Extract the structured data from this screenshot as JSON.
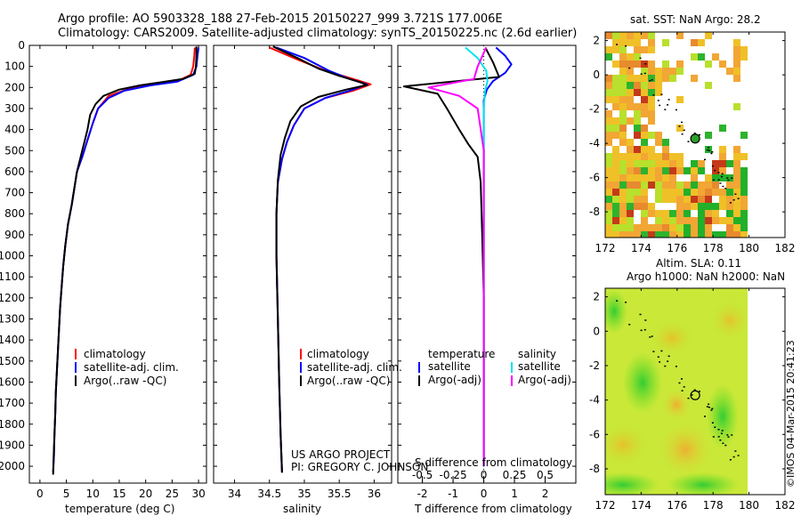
{
  "header": {
    "line1": "Argo profile: AO 5903328_188 27-Feb-2015 20150227_999 3.721S 177.006E",
    "line2": "Climatology: CARS2009. Satellite-adjusted climatology: synTS_20150225.nc (2.6d earlier)"
  },
  "colors": {
    "climatology": "#ff0000",
    "satellite": "#0000ff",
    "argo": "#000000",
    "sal_satellite": "#00e5ee",
    "sal_argo": "#ff00ff"
  },
  "chart_data": [
    {
      "type": "line",
      "name": "temperature-profile",
      "xlabel": "temperature (deg C)",
      "xlim": [
        -2,
        31.5
      ],
      "xticks": [
        0,
        5,
        10,
        15,
        20,
        25,
        30
      ],
      "ylim": [
        0,
        2080
      ],
      "yticks": [
        0,
        100,
        200,
        300,
        400,
        500,
        600,
        700,
        800,
        900,
        1000,
        1100,
        1200,
        1300,
        1400,
        1500,
        1600,
        1700,
        1800,
        1900,
        2000
      ],
      "legend": [
        "climatology",
        "satellite-adj. clim.",
        "Argo(..raw -QC)"
      ],
      "series": [
        {
          "name": "climatology",
          "color": "red",
          "points": [
            [
              29.3,
              10
            ],
            [
              29.2,
              50
            ],
            [
              29.0,
              100
            ],
            [
              28.5,
              140
            ],
            [
              26,
              170
            ],
            [
              22,
              185
            ],
            [
              17,
              205
            ],
            [
              13,
              240
            ],
            [
              11,
              300
            ],
            [
              10,
              370
            ],
            [
              9,
              450
            ],
            [
              8,
              530
            ],
            [
              7,
              600
            ],
            [
              6.5,
              680
            ],
            [
              6,
              760
            ],
            [
              5.3,
              850
            ],
            [
              4.8,
              950
            ],
            [
              4.4,
              1050
            ],
            [
              4.1,
              1150
            ],
            [
              3.8,
              1250
            ],
            [
              3.6,
              1350
            ],
            [
              3.4,
              1450
            ],
            [
              3.2,
              1550
            ],
            [
              3.0,
              1650
            ],
            [
              2.9,
              1750
            ],
            [
              2.75,
              1850
            ],
            [
              2.65,
              1950
            ],
            [
              2.5,
              2030
            ]
          ]
        },
        {
          "name": "satellite-adj. clim.",
          "color": "blue",
          "points": [
            [
              30.0,
              10
            ],
            [
              29.8,
              50
            ],
            [
              29.6,
              100
            ],
            [
              29,
              140
            ],
            [
              26,
              172
            ],
            [
              21,
              190
            ],
            [
              16,
              215
            ],
            [
              13,
              250
            ],
            [
              11,
              300
            ],
            [
              10,
              370
            ],
            [
              9,
              450
            ],
            [
              8,
              530
            ],
            [
              7,
              600
            ],
            [
              6.5,
              680
            ],
            [
              6,
              760
            ],
            [
              5.3,
              850
            ],
            [
              4.8,
              950
            ],
            [
              4.4,
              1050
            ],
            [
              4.1,
              1150
            ],
            [
              3.8,
              1250
            ],
            [
              3.6,
              1350
            ],
            [
              3.4,
              1450
            ],
            [
              3.2,
              1550
            ],
            [
              3.0,
              1650
            ],
            [
              2.9,
              1750
            ],
            [
              2.75,
              1850
            ],
            [
              2.65,
              1950
            ],
            [
              2.5,
              2030
            ]
          ]
        },
        {
          "name": "Argo",
          "color": "black",
          "points": [
            [
              29.6,
              5
            ],
            [
              29.6,
              50
            ],
            [
              29.5,
              100
            ],
            [
              29.3,
              135
            ],
            [
              27,
              160
            ],
            [
              23,
              175
            ],
            [
              19,
              190
            ],
            [
              15,
              210
            ],
            [
              12,
              240
            ],
            [
              10.5,
              280
            ],
            [
              9.5,
              330
            ],
            [
              9,
              400
            ],
            [
              8.5,
              450
            ],
            [
              7.8,
              520
            ],
            [
              7,
              600
            ],
            [
              6.5,
              680
            ],
            [
              6,
              760
            ],
            [
              5.3,
              850
            ],
            [
              4.8,
              950
            ],
            [
              4.4,
              1050
            ],
            [
              4.1,
              1150
            ],
            [
              3.8,
              1250
            ],
            [
              3.6,
              1350
            ],
            [
              3.4,
              1450
            ],
            [
              3.2,
              1550
            ],
            [
              3.0,
              1650
            ],
            [
              2.9,
              1750
            ],
            [
              2.75,
              1850
            ],
            [
              2.6,
              1950
            ],
            [
              2.5,
              2040
            ]
          ]
        }
      ]
    },
    {
      "type": "line",
      "name": "salinity-profile",
      "xlabel": "salinity",
      "xlim": [
        33.7,
        36.25
      ],
      "xticks": [
        34,
        34.5,
        35,
        35.5,
        36
      ],
      "xtick_labels": [
        "34",
        "34.5",
        "35",
        "35.5",
        "36"
      ],
      "ylim": [
        0,
        2080
      ],
      "legend": [
        "climatology",
        "satellite-adj. clim.",
        "Argo(..raw -QC)"
      ],
      "series": [
        {
          "name": "climatology",
          "color": "red",
          "points": [
            [
              34.5,
              10
            ],
            [
              34.85,
              60
            ],
            [
              35.3,
              120
            ],
            [
              35.75,
              165
            ],
            [
              35.95,
              185
            ],
            [
              35.7,
              215
            ],
            [
              35.3,
              250
            ],
            [
              35.0,
              300
            ],
            [
              34.85,
              380
            ],
            [
              34.75,
              460
            ],
            [
              34.68,
              540
            ],
            [
              34.62,
              650
            ],
            [
              34.6,
              800
            ],
            [
              34.6,
              1000
            ],
            [
              34.62,
              1300
            ],
            [
              34.64,
              1600
            ],
            [
              34.66,
              1850
            ],
            [
              34.68,
              2030
            ]
          ]
        },
        {
          "name": "satellite-adj. clim.",
          "color": "blue",
          "points": [
            [
              34.6,
              10
            ],
            [
              35.0,
              60
            ],
            [
              35.35,
              120
            ],
            [
              35.65,
              160
            ],
            [
              35.9,
              185
            ],
            [
              35.65,
              215
            ],
            [
              35.3,
              250
            ],
            [
              35.0,
              300
            ],
            [
              34.85,
              380
            ],
            [
              34.75,
              460
            ],
            [
              34.68,
              540
            ],
            [
              34.62,
              650
            ],
            [
              34.6,
              800
            ],
            [
              34.6,
              1000
            ],
            [
              34.62,
              1300
            ],
            [
              34.64,
              1600
            ],
            [
              34.66,
              1850
            ],
            [
              34.68,
              2030
            ]
          ]
        },
        {
          "name": "Argo",
          "color": "black",
          "points": [
            [
              34.55,
              5
            ],
            [
              34.9,
              60
            ],
            [
              35.2,
              110
            ],
            [
              35.5,
              145
            ],
            [
              35.8,
              175
            ],
            [
              35.9,
              188
            ],
            [
              35.6,
              210
            ],
            [
              35.2,
              245
            ],
            [
              34.95,
              290
            ],
            [
              34.8,
              360
            ],
            [
              34.72,
              440
            ],
            [
              34.66,
              520
            ],
            [
              34.62,
              640
            ],
            [
              34.6,
              800
            ],
            [
              34.6,
              1000
            ],
            [
              34.62,
              1300
            ],
            [
              34.64,
              1600
            ],
            [
              34.66,
              1850
            ],
            [
              34.68,
              2030
            ]
          ]
        }
      ]
    },
    {
      "type": "line",
      "name": "difference-profile",
      "xlabel_bottom": "T difference from climatology",
      "xlabel_top": "S difference from climatology",
      "xlim_T": [
        -2.8,
        3.0
      ],
      "xticks_T": [
        -2,
        -1,
        0,
        1,
        2
      ],
      "xlim_S": [
        -0.7,
        0.75
      ],
      "xticks_S": [
        -0.5,
        -0.25,
        0,
        0.25,
        0.5
      ],
      "xtick_labels_S": [
        "-0.5",
        "-0.25",
        "0",
        "0.25",
        "0.5"
      ],
      "ylim": [
        0,
        2080
      ],
      "legend_title_temperature": "temperature",
      "legend_title_salinity": "salinity",
      "legend_entries": [
        "satellite",
        "Argo(-adj)",
        "satellite",
        "Argo(-adj)"
      ],
      "series": [
        {
          "name": "T satellite",
          "color": "blue",
          "units": "T",
          "points": [
            [
              0.4,
              10
            ],
            [
              0.7,
              50
            ],
            [
              0.9,
              90
            ],
            [
              0.7,
              130
            ],
            [
              0.3,
              170
            ],
            [
              0.1,
              210
            ],
            [
              0,
              260
            ],
            [
              0,
              400
            ],
            [
              0,
              600
            ],
            [
              0,
              1000
            ],
            [
              0,
              1500
            ],
            [
              0,
              2000
            ]
          ]
        },
        {
          "name": "T Argo",
          "color": "black",
          "units": "T",
          "points": [
            [
              0.05,
              10
            ],
            [
              0.3,
              80
            ],
            [
              0.5,
              150
            ],
            [
              -2.6,
              195
            ],
            [
              -1.5,
              230
            ],
            [
              -1.2,
              300
            ],
            [
              -0.8,
              400
            ],
            [
              -0.5,
              470
            ],
            [
              -0.2,
              530
            ],
            [
              -0.1,
              650
            ],
            [
              -0.05,
              900
            ],
            [
              0,
              1200
            ],
            [
              0,
              1600
            ],
            [
              0,
              2000
            ]
          ]
        },
        {
          "name": "S satellite",
          "color": "cyan",
          "units": "S",
          "points": [
            [
              -0.15,
              10
            ],
            [
              -0.05,
              60
            ],
            [
              0.02,
              120
            ],
            [
              0.03,
              170
            ],
            [
              0.01,
              220
            ],
            [
              0,
              300
            ],
            [
              0,
              600
            ],
            [
              0,
              1000
            ],
            [
              0,
              1500
            ],
            [
              0,
              2000
            ]
          ]
        },
        {
          "name": "S Argo",
          "color": "magenta",
          "units": "S",
          "points": [
            [
              0.02,
              10
            ],
            [
              -0.05,
              100
            ],
            [
              -0.08,
              160
            ],
            [
              -0.45,
              200
            ],
            [
              -0.2,
              240
            ],
            [
              -0.05,
              300
            ],
            [
              0,
              500
            ],
            [
              0,
              800
            ],
            [
              0,
              1500
            ],
            [
              0,
              2000
            ]
          ]
        }
      ]
    },
    {
      "type": "heatmap",
      "name": "sst-map",
      "title": "sat. SST: NaN Argo: 28.2",
      "xlim": [
        172,
        182
      ],
      "ylim": [
        -9.5,
        2.5
      ],
      "xticks": [
        172,
        174,
        176,
        178,
        180,
        182
      ],
      "yticks": [
        -8,
        -6,
        -4,
        -2,
        0,
        2
      ],
      "marker": {
        "lon": 177.006,
        "lat": -3.721
      }
    },
    {
      "type": "heatmap",
      "name": "sla-map",
      "title": "Altim. SLA: 0.11",
      "subtitle": "Argo h1000: NaN h2000: NaN",
      "xlim": [
        172,
        182
      ],
      "ylim": [
        -9.5,
        2.5
      ],
      "xticks": [
        172,
        174,
        176,
        178,
        180,
        182
      ],
      "yticks": [
        -8,
        -6,
        -4,
        -2,
        0,
        2
      ],
      "marker": {
        "lon": 177.006,
        "lat": -3.721
      }
    }
  ],
  "annotations": {
    "project_line1": "US ARGO PROJECT",
    "project_line2": "PI: GREGORY C. JOHNSON",
    "imos_stamp": "©IMOS 04-Mar-2015 20:41:23"
  }
}
